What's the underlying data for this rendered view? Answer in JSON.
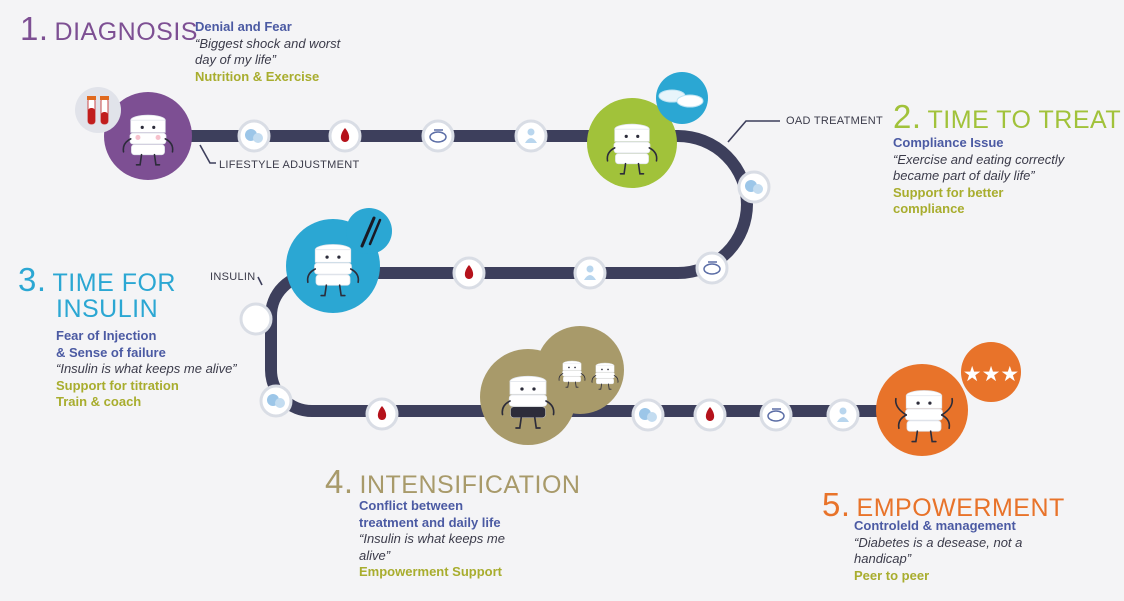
{
  "colors": {
    "path": "#3d3f5c",
    "node_ring": "#d9dde5",
    "node_icon": "#9cc6e8",
    "blood": "#b5121b",
    "diagnosis": "#7d4f93",
    "treat": "#a1c23a",
    "insulin": "#2ba7d3",
    "intensification": "#a89a6a",
    "empowerment": "#e8732a",
    "heading": "#4b5aa3",
    "support": "#a8ad2e"
  },
  "stages": {
    "diagnosis": {
      "num": "1.",
      "title": "DIAGNOSIS",
      "head": "Denial and Fear",
      "quote_1": "“Biggest shock and worst",
      "quote_2": "day of my life”",
      "support_1": "Nutrition & Exercise"
    },
    "treat": {
      "num": "2.",
      "title": "TIME TO TREAT",
      "head": "Compliance Issue",
      "quote_1": "“Exercise and eating correctly",
      "quote_2": "became part of daily life”",
      "support_1": "Support for better",
      "support_2": "compliance"
    },
    "insulin": {
      "num": "3.",
      "title_1": "TIME FOR",
      "title_2": "INSULIN",
      "head_1": "Fear of Injection",
      "head_2": "& Sense of failure",
      "quote_1": "“Insulin is what keeps me alive”",
      "support_1": "Support for titration",
      "support_2": "Train & coach"
    },
    "intensification": {
      "num": "4.",
      "title": "INTENSIFICATION",
      "head_1": "Conflict between",
      "head_2": "treatment and daily life",
      "quote_1": "“Insulin is what keeps me",
      "quote_2": "alive”",
      "support_1": "Empowerment Support"
    },
    "empowerment": {
      "num": "5.",
      "title": "EMPOWERMENT",
      "head": "Controleld & management",
      "quote_1": "“Diabetes is a desease, not a",
      "quote_2": "handicap”",
      "support_1": "Peer to peer"
    }
  },
  "path_labels": {
    "lifestyle": "LIFESTYLE ADJUSTMENT",
    "oad": "OAD TREATMENT",
    "insulin": "INSULIN"
  },
  "icons": {
    "chat": "chat-bubbles-icon",
    "blood": "blood-drop-icon",
    "scale": "scale-icon",
    "person": "person-icon",
    "pills": "pills-icon",
    "pen": "insulin-pen-icon",
    "stars": "stars-icon",
    "tubes": "blood-tubes-icon",
    "mascot": "pill-mascot-icon"
  }
}
